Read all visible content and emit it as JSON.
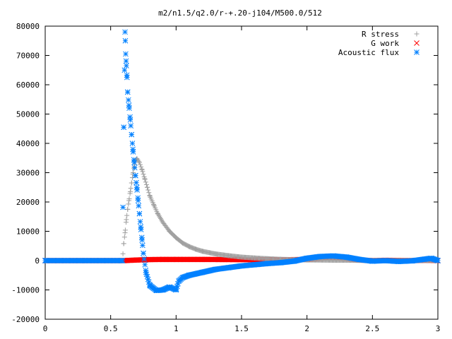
{
  "chart_data": {
    "type": "scatter",
    "title": "m2/n1.5/q2.0/r-+.20-j104/M500.0/512",
    "xlim": [
      0,
      3
    ],
    "ylim": [
      -20000,
      80000
    ],
    "x_ticks": [
      0,
      0.5,
      1,
      1.5,
      2,
      2.5,
      3
    ],
    "x_tick_labels": [
      "0",
      "0.5",
      "1",
      "1.5",
      "2",
      "2.5",
      "3"
    ],
    "y_ticks": [
      -20000,
      -10000,
      0,
      10000,
      20000,
      30000,
      40000,
      50000,
      60000,
      70000,
      80000
    ],
    "y_tick_labels": [
      "-20000",
      "-10000",
      "0",
      "10000",
      "20000",
      "30000",
      "40000",
      "50000",
      "60000",
      "70000",
      "80000"
    ],
    "grid": false,
    "legend_position": "top-right",
    "series": [
      {
        "name": "R stress",
        "marker": "plus",
        "color": "#a0a0a0",
        "x": [
          0,
          0.3,
          0.59,
          0.6,
          0.61,
          0.62,
          0.63,
          0.64,
          0.65,
          0.66,
          0.67,
          0.68,
          0.69,
          0.7,
          0.72,
          0.74,
          0.76,
          0.78,
          0.8,
          0.83,
          0.86,
          0.9,
          0.95,
          1.0,
          1.05,
          1.1,
          1.15,
          1.2,
          1.3,
          1.4,
          1.5,
          1.6,
          1.7,
          1.8,
          1.9,
          2.0,
          2.2,
          2.4,
          2.6,
          2.8,
          3.0
        ],
        "y": [
          0,
          0,
          0,
          5800,
          9500,
          14000,
          17500,
          20500,
          23500,
          26500,
          29500,
          32000,
          34000,
          34800,
          33500,
          31000,
          28000,
          25000,
          22000,
          19000,
          16000,
          13000,
          10000,
          7800,
          6000,
          4800,
          3900,
          3200,
          2300,
          1700,
          1200,
          900,
          650,
          450,
          320,
          220,
          130,
          80,
          50,
          30,
          20
        ]
      },
      {
        "name": "G work",
        "marker": "cross",
        "color": "#ff0000",
        "x": [
          0,
          0.3,
          0.6,
          0.7,
          0.8,
          0.9,
          1.0,
          1.2,
          1.4,
          1.6,
          1.8,
          2.0,
          2.1,
          2.2,
          2.3,
          2.4,
          2.5,
          2.6,
          2.7,
          2.8,
          2.9,
          3.0
        ],
        "y": [
          0,
          0,
          0,
          200,
          350,
          400,
          400,
          400,
          350,
          300,
          250,
          400,
          800,
          1000,
          700,
          200,
          0,
          100,
          50,
          0,
          100,
          0
        ]
      },
      {
        "name": "Acoustic flux",
        "marker": "star",
        "color": "#0080ff",
        "x": [
          0,
          0.3,
          0.55,
          0.59,
          0.6,
          0.61,
          0.615,
          0.62,
          0.625,
          0.63,
          0.64,
          0.65,
          0.66,
          0.67,
          0.68,
          0.69,
          0.7,
          0.71,
          0.72,
          0.73,
          0.74,
          0.75,
          0.77,
          0.8,
          0.85,
          0.9,
          0.95,
          1.0,
          1.02,
          1.05,
          1.1,
          1.2,
          1.3,
          1.4,
          1.5,
          1.6,
          1.7,
          1.8,
          1.9,
          2.0,
          2.1,
          2.2,
          2.3,
          2.4,
          2.5,
          2.6,
          2.7,
          2.8,
          2.9,
          2.95,
          3.0
        ],
        "y": [
          0,
          0,
          0,
          0,
          45500,
          78000,
          70500,
          66500,
          62500,
          57500,
          53000,
          48000,
          43000,
          38000,
          33500,
          29000,
          25000,
          20500,
          16000,
          11500,
          7000,
          2500,
          -4000,
          -8500,
          -10200,
          -10000,
          -9000,
          -10000,
          -7000,
          -5800,
          -5000,
          -4000,
          -3000,
          -2400,
          -1800,
          -1400,
          -1000,
          -700,
          -200,
          800,
          1400,
          1600,
          1200,
          400,
          -200,
          0,
          -300,
          -100,
          500,
          800,
          0
        ]
      }
    ]
  }
}
